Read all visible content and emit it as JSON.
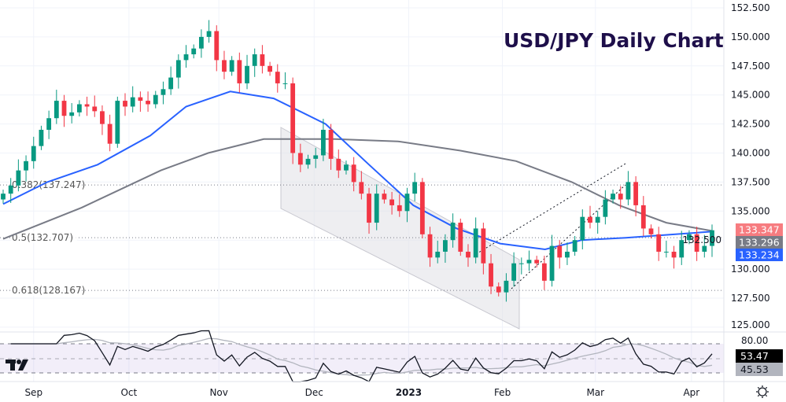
{
  "chart_data": {
    "type": "candlestick",
    "title": "USD/JPY Daily Chart",
    "symbol": "USD/JPY",
    "ylim": [
      124.5,
      153
    ],
    "y_ticks": [
      "152.500",
      "150.000",
      "147.500",
      "145.000",
      "142.500",
      "140.000",
      "137.500",
      "135.000",
      "132.500",
      "130.000",
      "127.500",
      "125.000"
    ],
    "y_tick_values": [
      152.5,
      150,
      147.5,
      145,
      142.5,
      140,
      137.5,
      135,
      132.5,
      130,
      127.5,
      125
    ],
    "x_ticks": [
      {
        "label": "Sep",
        "index": 4
      },
      {
        "label": "Oct",
        "index": 16.5
      },
      {
        "label": "Nov",
        "index": 28.3
      },
      {
        "label": "Dec",
        "index": 40.8
      },
      {
        "label": "2023",
        "index": 53.2
      },
      {
        "label": "Feb",
        "index": 65.5
      },
      {
        "label": "Mar",
        "index": 77.7
      },
      {
        "label": "Apr",
        "index": 90.3
      }
    ],
    "closes": [
      136.5,
      137.2,
      138.5,
      139.3,
      140.6,
      142,
      143,
      144.5,
      143.2,
      143.5,
      144.2,
      144,
      143.6,
      142.5,
      140.8,
      144.5,
      144,
      144.8,
      144.5,
      144.2,
      145,
      145.5,
      146.5,
      148,
      148.5,
      149,
      150,
      150.5,
      148,
      147,
      148,
      146,
      147.5,
      148.5,
      147.5,
      147,
      146,
      146,
      140,
      139,
      139.5,
      139.8,
      142,
      139.5,
      138.5,
      139,
      137.5,
      136.5,
      134,
      136.5,
      136,
      135.5,
      135,
      136.5,
      137.5,
      133,
      131,
      131.5,
      132.5,
      134,
      131.5,
      131,
      133.5,
      130.5,
      128.5,
      128,
      129,
      130.5,
      130.5,
      130.8,
      130.5,
      129,
      132,
      131,
      131.5,
      132.5,
      134.5,
      134,
      134.5,
      136,
      136.5,
      136,
      137.5,
      135.5,
      133.5,
      133,
      131.5,
      131.5,
      131,
      132.5,
      133,
      131.5,
      132,
      133.347
    ],
    "ma_blue": [
      [
        0,
        135.6
      ],
      [
        5.8,
        137.5
      ],
      [
        12.4,
        139
      ],
      [
        19.3,
        141.5
      ],
      [
        24,
        144
      ],
      [
        29.8,
        145.3
      ],
      [
        35.5,
        144.7
      ],
      [
        42.3,
        142.5
      ],
      [
        48,
        139
      ],
      [
        53.8,
        135.5
      ],
      [
        59.5,
        133.5
      ],
      [
        65.2,
        132.2
      ],
      [
        71.1,
        131.7
      ],
      [
        75.9,
        132.5
      ],
      [
        81.7,
        132.7
      ],
      [
        93,
        133.234
      ]
    ],
    "ma_gray": [
      [
        0,
        132.6
      ],
      [
        10.3,
        135.3
      ],
      [
        20.7,
        138.5
      ],
      [
        26.9,
        140
      ],
      [
        34.2,
        141.2
      ],
      [
        43.5,
        141.2
      ],
      [
        51.8,
        141
      ],
      [
        60,
        140.2
      ],
      [
        67.3,
        139.3
      ],
      [
        74.6,
        137.5
      ],
      [
        80.8,
        135.5
      ],
      [
        87,
        134
      ],
      [
        93,
        133.296
      ]
    ],
    "fib_levels": [
      {
        "label": "0.382(137.247)",
        "value": 137.247
      },
      {
        "label": "0.5(132.707)",
        "value": 132.707
      },
      {
        "label": "0.618(128.167)",
        "value": 128.167
      }
    ],
    "price_tags": [
      {
        "label": "133.347",
        "color": "#f77c80"
      },
      {
        "label": "133.296",
        "color": "#787b86"
      },
      {
        "label": "133.234",
        "color": "#2962ff"
      }
    ],
    "rsi": {
      "upper_label": "80.00",
      "value_tag": {
        "label": "53.47",
        "color": "#000000"
      },
      "ma_tag": {
        "label": "45.53",
        "color": "#b2b5be"
      }
    },
    "colors": {
      "up": "#089981",
      "down": "#f23645",
      "title": "#1e0f4a",
      "ma_blue": "#2962ff",
      "ma_gray": "#787b86"
    }
  }
}
